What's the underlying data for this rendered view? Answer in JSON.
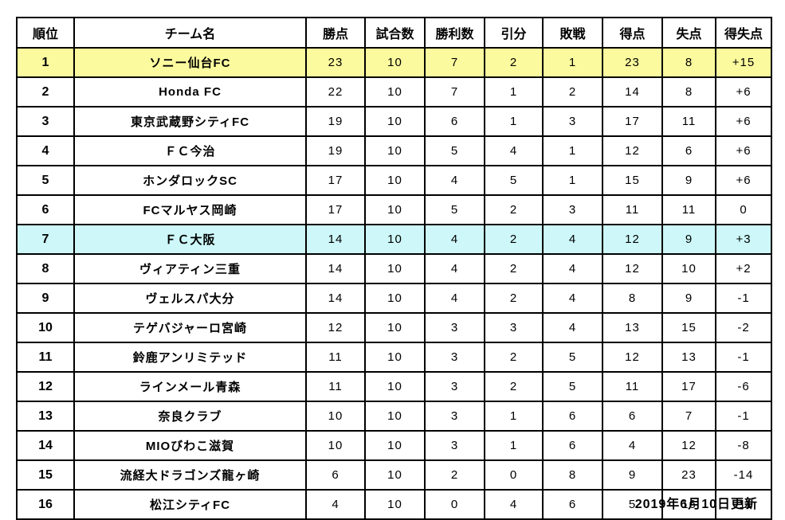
{
  "chart_data": {
    "type": "table",
    "title": "",
    "columns": [
      "順位",
      "チーム名",
      "勝点",
      "試合数",
      "勝利数",
      "引分",
      "敗戦",
      "得点",
      "失点",
      "得失点"
    ],
    "rows": [
      {
        "rank": 1,
        "team": "ソニー仙台FC",
        "points": 23,
        "played": 10,
        "wins": 7,
        "draws": 2,
        "losses": 1,
        "goals_for": 23,
        "goals_against": 8,
        "goal_diff": "+15",
        "highlight": "yellow"
      },
      {
        "rank": 2,
        "team": "Honda FC",
        "points": 22,
        "played": 10,
        "wins": 7,
        "draws": 1,
        "losses": 2,
        "goals_for": 14,
        "goals_against": 8,
        "goal_diff": "+6",
        "highlight": ""
      },
      {
        "rank": 3,
        "team": "東京武蔵野シティFC",
        "points": 19,
        "played": 10,
        "wins": 6,
        "draws": 1,
        "losses": 3,
        "goals_for": 17,
        "goals_against": 11,
        "goal_diff": "+6",
        "highlight": ""
      },
      {
        "rank": 4,
        "team": "ＦＣ今治",
        "points": 19,
        "played": 10,
        "wins": 5,
        "draws": 4,
        "losses": 1,
        "goals_for": 12,
        "goals_against": 6,
        "goal_diff": "+6",
        "highlight": ""
      },
      {
        "rank": 5,
        "team": "ホンダロックSC",
        "points": 17,
        "played": 10,
        "wins": 4,
        "draws": 5,
        "losses": 1,
        "goals_for": 15,
        "goals_against": 9,
        "goal_diff": "+6",
        "highlight": ""
      },
      {
        "rank": 6,
        "team": "FCマルヤス岡崎",
        "points": 17,
        "played": 10,
        "wins": 5,
        "draws": 2,
        "losses": 3,
        "goals_for": 11,
        "goals_against": 11,
        "goal_diff": "0",
        "highlight": ""
      },
      {
        "rank": 7,
        "team": "ＦＣ大阪",
        "points": 14,
        "played": 10,
        "wins": 4,
        "draws": 2,
        "losses": 4,
        "goals_for": 12,
        "goals_against": 9,
        "goal_diff": "+3",
        "highlight": "cyan"
      },
      {
        "rank": 8,
        "team": "ヴィアティン三重",
        "points": 14,
        "played": 10,
        "wins": 4,
        "draws": 2,
        "losses": 4,
        "goals_for": 12,
        "goals_against": 10,
        "goal_diff": "+2",
        "highlight": ""
      },
      {
        "rank": 9,
        "team": "ヴェルスパ大分",
        "points": 14,
        "played": 10,
        "wins": 4,
        "draws": 2,
        "losses": 4,
        "goals_for": 8,
        "goals_against": 9,
        "goal_diff": "-1",
        "highlight": ""
      },
      {
        "rank": 10,
        "team": "テゲバジャーロ宮崎",
        "points": 12,
        "played": 10,
        "wins": 3,
        "draws": 3,
        "losses": 4,
        "goals_for": 13,
        "goals_against": 15,
        "goal_diff": "-2",
        "highlight": ""
      },
      {
        "rank": 11,
        "team": "鈴鹿アンリミテッド",
        "points": 11,
        "played": 10,
        "wins": 3,
        "draws": 2,
        "losses": 5,
        "goals_for": 12,
        "goals_against": 13,
        "goal_diff": "-1",
        "highlight": ""
      },
      {
        "rank": 12,
        "team": "ラインメール青森",
        "points": 11,
        "played": 10,
        "wins": 3,
        "draws": 2,
        "losses": 5,
        "goals_for": 11,
        "goals_against": 17,
        "goal_diff": "-6",
        "highlight": ""
      },
      {
        "rank": 13,
        "team": "奈良クラブ",
        "points": 10,
        "played": 10,
        "wins": 3,
        "draws": 1,
        "losses": 6,
        "goals_for": 6,
        "goals_against": 7,
        "goal_diff": "-1",
        "highlight": ""
      },
      {
        "rank": 14,
        "team": "MIOびわこ滋賀",
        "points": 10,
        "played": 10,
        "wins": 3,
        "draws": 1,
        "losses": 6,
        "goals_for": 4,
        "goals_against": 12,
        "goal_diff": "-8",
        "highlight": ""
      },
      {
        "rank": 15,
        "team": "流経大ドラゴンズ龍ヶ崎",
        "points": 6,
        "played": 10,
        "wins": 2,
        "draws": 0,
        "losses": 8,
        "goals_for": 9,
        "goals_against": 23,
        "goal_diff": "-14",
        "highlight": ""
      },
      {
        "rank": 16,
        "team": "松江シティFC",
        "points": 4,
        "played": 10,
        "wins": 0,
        "draws": 4,
        "losses": 6,
        "goals_for": 5,
        "goals_against": 16,
        "goal_diff": "-11",
        "highlight": ""
      }
    ],
    "grid": true,
    "legend_position": "none"
  },
  "footer": {
    "updated_label": "2019年6月10日更新"
  },
  "colors": {
    "highlight_yellow": "#FBFA9E",
    "highlight_cyan": "#CDF7F8",
    "border": "#000000",
    "background": "#FFFFFF",
    "text": "#000000"
  }
}
